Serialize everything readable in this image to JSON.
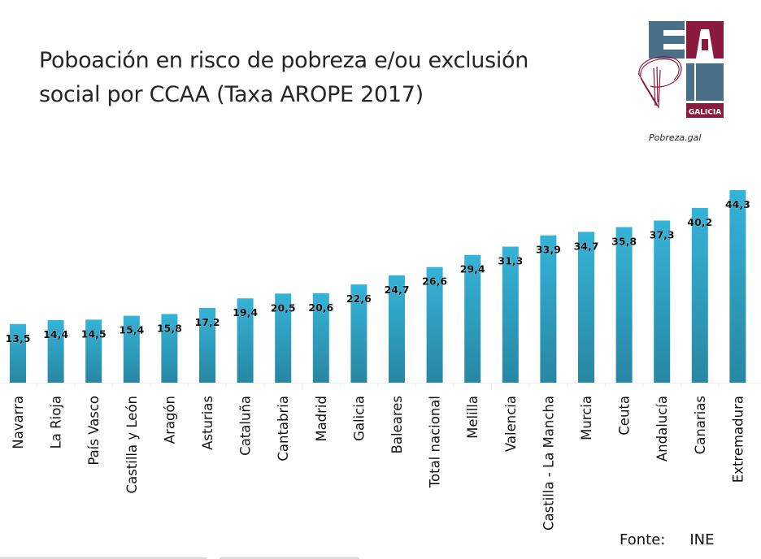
{
  "header": {
    "title_line1": "Poboación en risco de pobreza e/ou exclusión",
    "title_line2": "social por CCAA (Taxa AROPE 2017)",
    "logo_text": "EAPN",
    "logo_sub": "GALICIA",
    "site": "Pobreza.gal"
  },
  "footer": {
    "source_label": "Fonte:",
    "source_value": "INE"
  },
  "colors": {
    "bar_top": "#35b3d8",
    "bar_bottom": "#2787a3",
    "logo_blue": "#4a6f88",
    "logo_red": "#8b1a3f"
  },
  "chart_data": {
    "type": "bar",
    "title": "Poboación en risco de pobreza e/ou exclusión social por CCAA (Taxa AROPE 2017)",
    "xlabel": "",
    "ylabel": "",
    "ylim": [
      0,
      45
    ],
    "grid": false,
    "legend": "none",
    "categories": [
      "Navarra",
      "La Rioja",
      "País Vasco",
      "Castilla y León",
      "Aragón",
      "Asturias",
      "Cataluña",
      "Cantabria",
      "Madrid",
      "Galicia",
      "Baleares",
      "Total nacional",
      "Melilla",
      "Valencia",
      "Castilla - La Mancha",
      "Murcia",
      "Ceuta",
      "Andalucía",
      "Canarias",
      "Extremadura"
    ],
    "values": [
      13.5,
      14.4,
      14.5,
      15.4,
      15.8,
      17.2,
      19.4,
      20.5,
      20.6,
      22.6,
      24.7,
      26.6,
      29.4,
      31.3,
      33.9,
      34.7,
      35.8,
      37.3,
      40.2,
      44.3
    ],
    "data_labels": [
      "13,5",
      "14,4",
      "14,5",
      "15,4",
      "15,8",
      "17,2",
      "19,4",
      "20,5",
      "20,6",
      "22,6",
      "24,7",
      "26,6",
      "29,4",
      "31,3",
      "33,9",
      "34,7",
      "35,8",
      "37,3",
      "40,2",
      "44,3"
    ]
  }
}
